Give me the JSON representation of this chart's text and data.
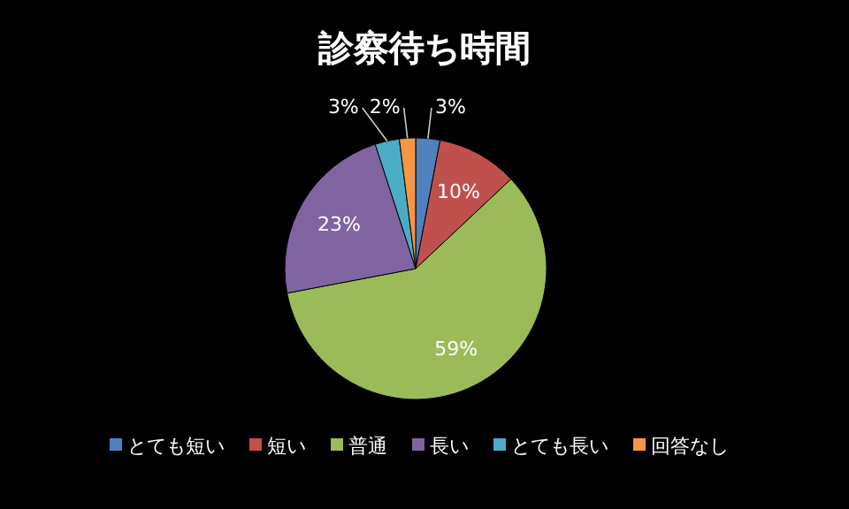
{
  "chart_data": {
    "type": "pie",
    "title": "診察待ち時間",
    "categories": [
      "とても短い",
      "短い",
      "普通",
      "長い",
      "とても長い",
      "回答なし"
    ],
    "values": [
      3,
      10,
      59,
      23,
      3,
      2
    ],
    "value_labels": [
      "3%",
      "10%",
      "59%",
      "23%",
      "3%",
      "2%"
    ],
    "colors": [
      "#4f81bd",
      "#c0504d",
      "#9bbb59",
      "#8064a2",
      "#4bacc6",
      "#f79646"
    ],
    "legend": "bottom"
  }
}
